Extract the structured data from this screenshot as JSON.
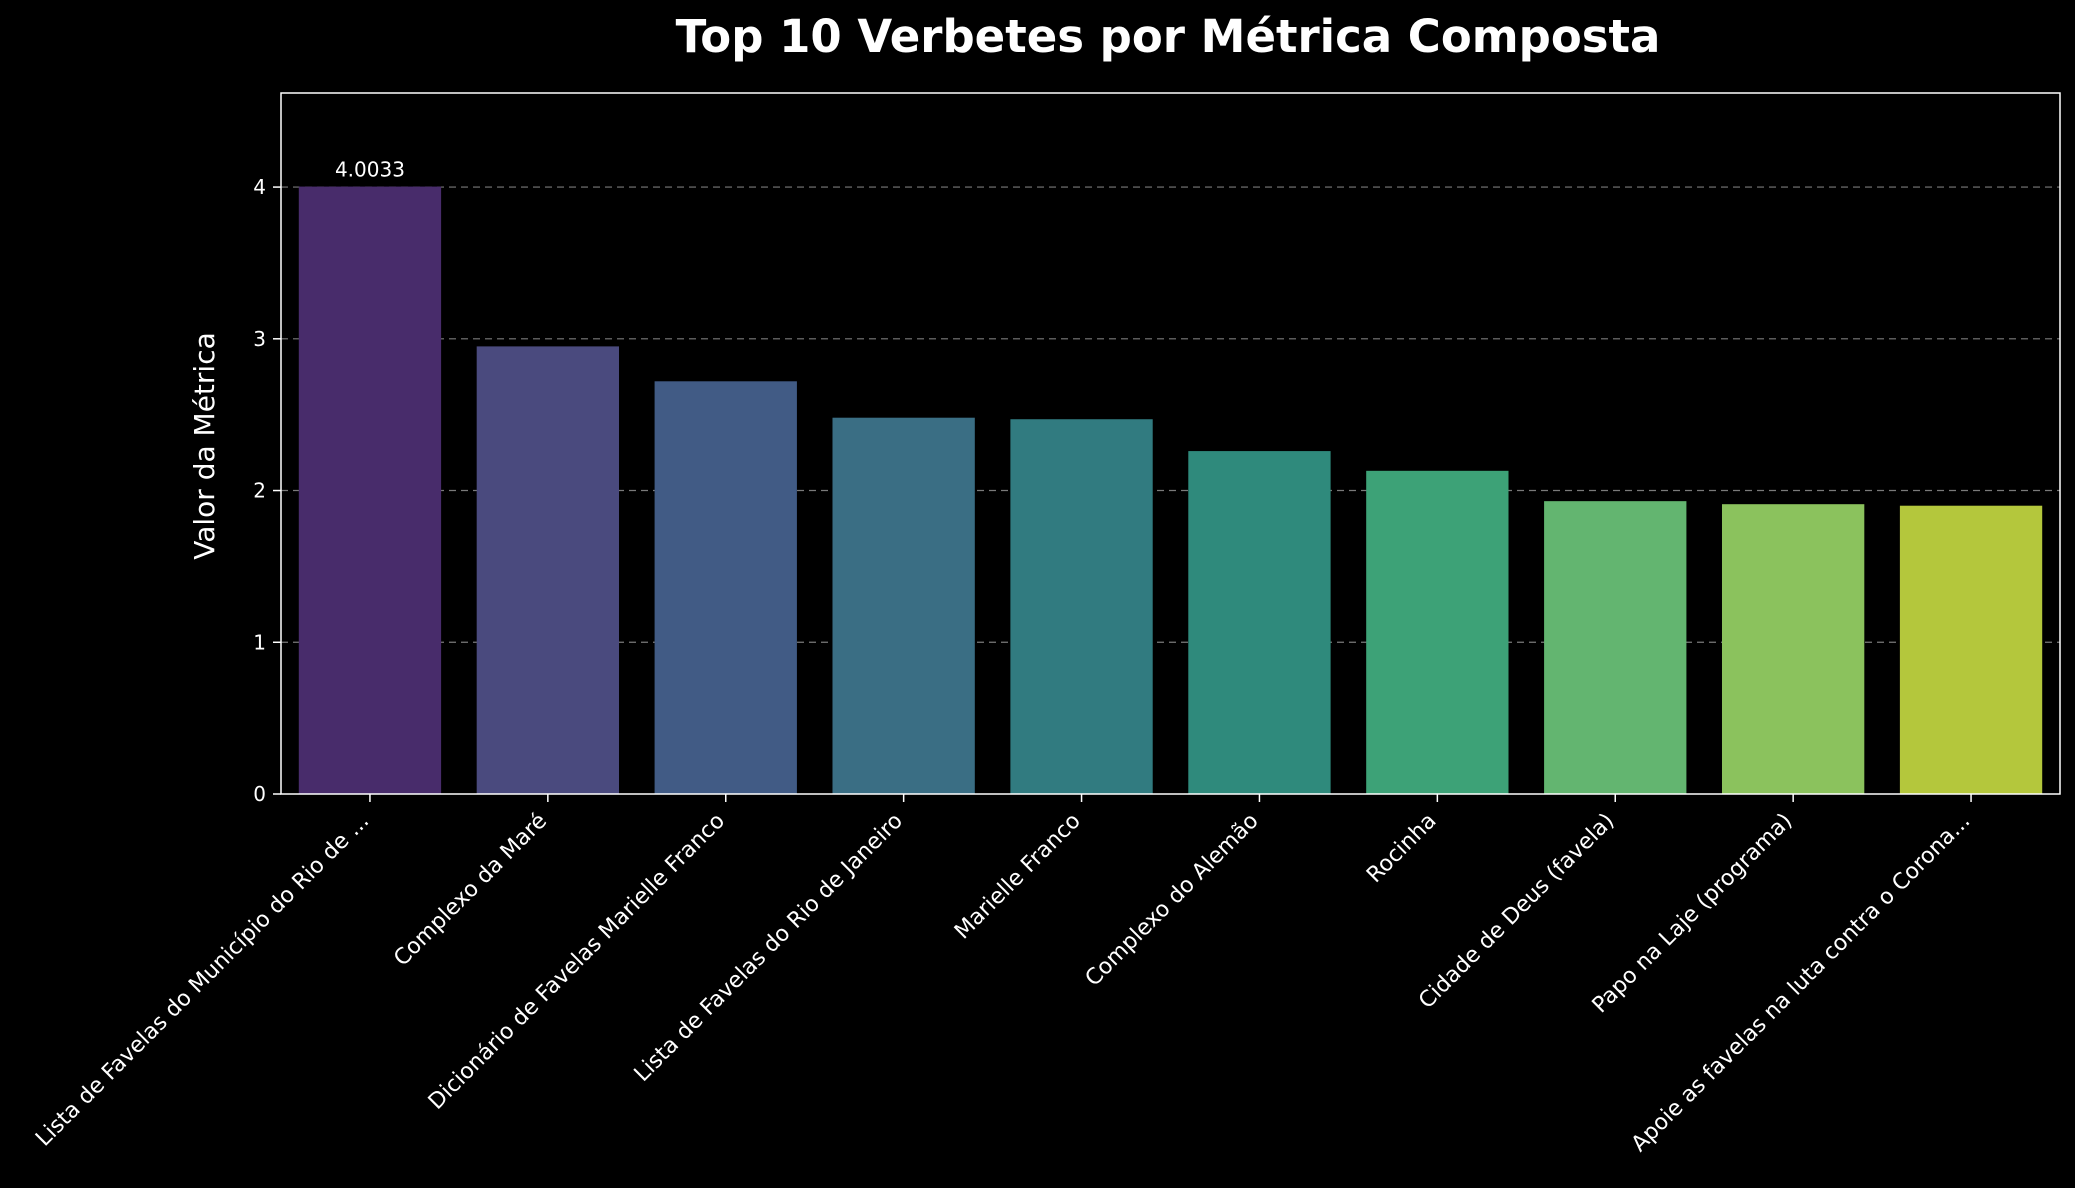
{
  "chart_data": {
    "type": "bar",
    "title": "Top 10 Verbetes por Métrica Composta",
    "xlabel": "",
    "ylabel": "Valor da Métrica",
    "ylim": [
      0,
      4.62
    ],
    "yticks": [
      0,
      1,
      2,
      3,
      4
    ],
    "grid": "horizontal dashed",
    "categories": [
      "Lista de Favelas do Município do Rio de ...",
      "Complexo da Maré",
      "Dicionário de Favelas Marielle Franco",
      "Lista de Favelas do Rio de Janeiro",
      "Marielle Franco",
      "Complexo do Alemão",
      "Rocinha",
      "Cidade de Deus (favela)",
      "Papo na Laje (programa)",
      "Apoie as favelas na luta contra o Corona..."
    ],
    "values": [
      4.0033,
      2.95,
      2.72,
      2.48,
      2.47,
      2.26,
      2.13,
      1.93,
      1.91,
      1.9
    ],
    "data_labels": [
      "4.0033",
      "",
      "",
      "",
      "",
      "",
      "",
      "",
      "",
      ""
    ],
    "colors": [
      "#482c6b",
      "#4a4a7e",
      "#415b85",
      "#3a6e84",
      "#317b80",
      "#2f8a7c",
      "#3da277",
      "#63b570",
      "#8bc25d",
      "#b4c73c"
    ],
    "background": "#000000",
    "axis_color": "#ffffff",
    "grid_color": "#7a7a7a"
  }
}
